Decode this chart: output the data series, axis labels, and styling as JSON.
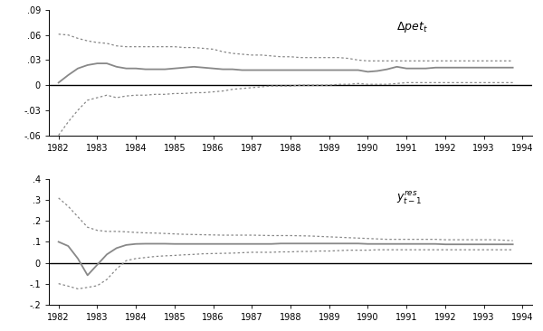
{
  "top_panel": {
    "title_text": "$\\Delta pet_t$",
    "ylim": [
      -0.06,
      0.09
    ],
    "yticks": [
      -0.06,
      -0.03,
      0.0,
      0.03,
      0.06,
      0.09
    ],
    "ytick_labels": [
      "-.06",
      "-.03",
      "0",
      ".03",
      ".06",
      ".09"
    ],
    "xlim": [
      1981.75,
      1994.25
    ],
    "xticks": [
      1982,
      1983,
      1984,
      1985,
      1986,
      1987,
      1988,
      1989,
      1990,
      1991,
      1992,
      1993,
      1994
    ],
    "x": [
      1982.0,
      1982.25,
      1982.5,
      1982.75,
      1983.0,
      1983.25,
      1983.5,
      1983.75,
      1984.0,
      1984.25,
      1984.5,
      1984.75,
      1985.0,
      1985.25,
      1985.5,
      1985.75,
      1986.0,
      1986.25,
      1986.5,
      1986.75,
      1987.0,
      1987.25,
      1987.5,
      1987.75,
      1988.0,
      1988.25,
      1988.5,
      1988.75,
      1989.0,
      1989.25,
      1989.5,
      1989.75,
      1990.0,
      1990.25,
      1990.5,
      1990.75,
      1991.0,
      1991.25,
      1991.5,
      1991.75,
      1992.0,
      1992.25,
      1992.5,
      1992.75,
      1993.0,
      1993.25,
      1993.5,
      1993.75
    ],
    "coef": [
      0.003,
      0.012,
      0.02,
      0.024,
      0.026,
      0.026,
      0.022,
      0.02,
      0.02,
      0.019,
      0.019,
      0.019,
      0.02,
      0.021,
      0.022,
      0.021,
      0.02,
      0.019,
      0.019,
      0.018,
      0.018,
      0.018,
      0.018,
      0.018,
      0.018,
      0.018,
      0.018,
      0.018,
      0.018,
      0.018,
      0.018,
      0.018,
      0.016,
      0.017,
      0.019,
      0.022,
      0.02,
      0.02,
      0.02,
      0.021,
      0.021,
      0.021,
      0.021,
      0.021,
      0.021,
      0.021,
      0.021,
      0.021
    ],
    "upper": [
      0.061,
      0.06,
      0.056,
      0.053,
      0.051,
      0.05,
      0.047,
      0.046,
      0.046,
      0.046,
      0.046,
      0.046,
      0.046,
      0.045,
      0.045,
      0.044,
      0.043,
      0.04,
      0.038,
      0.037,
      0.036,
      0.036,
      0.035,
      0.034,
      0.034,
      0.033,
      0.033,
      0.033,
      0.033,
      0.033,
      0.032,
      0.03,
      0.029,
      0.029,
      0.029,
      0.029,
      0.029,
      0.029,
      0.029,
      0.029,
      0.029,
      0.029,
      0.029,
      0.029,
      0.029,
      0.029,
      0.029,
      0.029
    ],
    "lower": [
      -0.06,
      -0.044,
      -0.03,
      -0.018,
      -0.015,
      -0.012,
      -0.015,
      -0.013,
      -0.012,
      -0.012,
      -0.011,
      -0.011,
      -0.01,
      -0.01,
      -0.009,
      -0.009,
      -0.008,
      -0.007,
      -0.005,
      -0.004,
      -0.003,
      -0.002,
      -0.001,
      -0.001,
      -0.001,
      0.0,
      0.0,
      0.0,
      0.0,
      0.001,
      0.001,
      0.002,
      0.001,
      0.001,
      0.001,
      0.002,
      0.003,
      0.003,
      0.003,
      0.003,
      0.003,
      0.003,
      0.003,
      0.003,
      0.003,
      0.003,
      0.003,
      0.003
    ]
  },
  "bottom_panel": {
    "title_text": "$y^{res}_{t-1}$",
    "ylim": [
      -0.2,
      0.4
    ],
    "yticks": [
      -0.2,
      -0.1,
      0.0,
      0.1,
      0.2,
      0.3,
      0.4
    ],
    "ytick_labels": [
      "-.2",
      "-.1",
      "0",
      ".1",
      ".2",
      ".3",
      ".4"
    ],
    "xlim": [
      1981.75,
      1994.25
    ],
    "xticks": [
      1982,
      1983,
      1984,
      1985,
      1986,
      1987,
      1988,
      1989,
      1990,
      1991,
      1992,
      1993,
      1994
    ],
    "x": [
      1982.0,
      1982.25,
      1982.5,
      1982.75,
      1983.0,
      1983.25,
      1983.5,
      1983.75,
      1984.0,
      1984.25,
      1984.5,
      1984.75,
      1985.0,
      1985.25,
      1985.5,
      1985.75,
      1986.0,
      1986.25,
      1986.5,
      1986.75,
      1987.0,
      1987.25,
      1987.5,
      1987.75,
      1988.0,
      1988.25,
      1988.5,
      1988.75,
      1989.0,
      1989.25,
      1989.5,
      1989.75,
      1990.0,
      1990.25,
      1990.5,
      1990.75,
      1991.0,
      1991.25,
      1991.5,
      1991.75,
      1992.0,
      1992.25,
      1992.5,
      1992.75,
      1993.0,
      1993.25,
      1993.5,
      1993.75
    ],
    "coef": [
      0.1,
      0.08,
      0.02,
      -0.06,
      -0.01,
      0.04,
      0.07,
      0.085,
      0.09,
      0.091,
      0.091,
      0.091,
      0.09,
      0.09,
      0.09,
      0.09,
      0.09,
      0.09,
      0.09,
      0.09,
      0.09,
      0.09,
      0.09,
      0.092,
      0.092,
      0.092,
      0.092,
      0.092,
      0.092,
      0.092,
      0.092,
      0.092,
      0.09,
      0.09,
      0.09,
      0.09,
      0.09,
      0.09,
      0.09,
      0.09,
      0.088,
      0.088,
      0.088,
      0.088,
      0.088,
      0.088,
      0.088,
      0.088
    ],
    "upper": [
      0.31,
      0.27,
      0.22,
      0.17,
      0.155,
      0.15,
      0.15,
      0.148,
      0.145,
      0.143,
      0.142,
      0.14,
      0.138,
      0.136,
      0.135,
      0.134,
      0.133,
      0.132,
      0.132,
      0.132,
      0.132,
      0.131,
      0.13,
      0.13,
      0.13,
      0.129,
      0.128,
      0.126,
      0.124,
      0.122,
      0.12,
      0.118,
      0.116,
      0.114,
      0.112,
      0.112,
      0.112,
      0.112,
      0.112,
      0.112,
      0.11,
      0.11,
      0.11,
      0.11,
      0.11,
      0.11,
      0.108,
      0.106
    ],
    "lower": [
      -0.1,
      -0.112,
      -0.125,
      -0.118,
      -0.11,
      -0.08,
      -0.03,
      0.01,
      0.02,
      0.025,
      0.03,
      0.033,
      0.035,
      0.038,
      0.04,
      0.043,
      0.044,
      0.045,
      0.046,
      0.048,
      0.05,
      0.05,
      0.05,
      0.052,
      0.052,
      0.054,
      0.054,
      0.056,
      0.056,
      0.058,
      0.06,
      0.06,
      0.06,
      0.062,
      0.062,
      0.062,
      0.062,
      0.062,
      0.062,
      0.062,
      0.062,
      0.062,
      0.062,
      0.062,
      0.062,
      0.062,
      0.062,
      0.062
    ]
  },
  "line_color": "#888888",
  "dot_color": "#888888",
  "zero_line_color": "#000000",
  "background_color": "#ffffff",
  "title_fontsize": 9,
  "tick_fontsize": 7
}
